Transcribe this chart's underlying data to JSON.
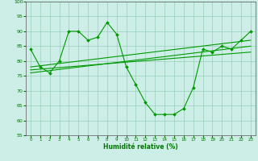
{
  "xlabel": "Humidité relative (%)",
  "bg_color": "#cceee6",
  "grid_color": "#99ccbb",
  "line_color": "#009900",
  "text_color": "#007700",
  "xlim": [
    -0.5,
    23.5
  ],
  "ylim": [
    55,
    100
  ],
  "yticks": [
    55,
    60,
    65,
    70,
    75,
    80,
    85,
    90,
    95,
    100
  ],
  "xticks": [
    0,
    1,
    2,
    3,
    4,
    5,
    6,
    7,
    8,
    9,
    10,
    11,
    12,
    13,
    14,
    15,
    16,
    17,
    18,
    19,
    20,
    21,
    22,
    23
  ],
  "series": [
    {
      "x": [
        0,
        1,
        2,
        3,
        4,
        5,
        6,
        7,
        8,
        9,
        10,
        11,
        12,
        13,
        14,
        15,
        16,
        17,
        18,
        19,
        20,
        21,
        22,
        23
      ],
      "y": [
        84,
        78,
        76,
        80,
        90,
        90,
        87,
        88,
        93,
        89,
        78,
        72,
        66,
        62,
        62,
        62,
        64,
        71,
        84,
        83,
        85,
        84,
        87,
        90
      ],
      "has_marker": true
    },
    {
      "x": [
        0,
        23
      ],
      "y": [
        76,
        85
      ],
      "has_marker": false
    },
    {
      "x": [
        0,
        23
      ],
      "y": [
        77,
        83
      ],
      "has_marker": false
    },
    {
      "x": [
        0,
        23
      ],
      "y": [
        78,
        87
      ],
      "has_marker": false
    }
  ]
}
